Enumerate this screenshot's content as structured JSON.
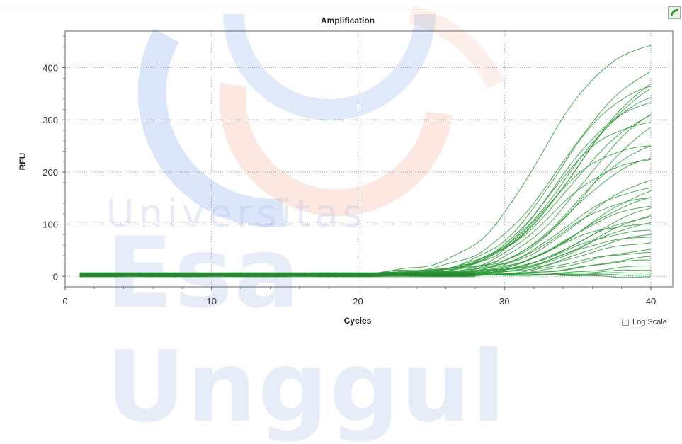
{
  "chart_data": {
    "type": "line",
    "title": "Amplification",
    "xlabel": "Cycles",
    "ylabel": "RFU",
    "xlim": [
      0,
      41.5
    ],
    "ylim": [
      -20,
      470
    ],
    "x_ticks": [
      0,
      10,
      20,
      30,
      40
    ],
    "y_ticks": [
      0,
      100,
      200,
      300,
      400
    ],
    "grid": true,
    "line_color": "#2e9b3a",
    "x_cycles": [
      1,
      40
    ],
    "series": [
      {
        "plateau": 460,
        "midpoint": 32.5,
        "slope": 0.42
      },
      {
        "plateau": 430,
        "midpoint": 34.0,
        "slope": 0.38
      },
      {
        "plateau": 415,
        "midpoint": 35.0,
        "slope": 0.4
      },
      {
        "plateau": 400,
        "midpoint": 34.8,
        "slope": 0.4
      },
      {
        "plateau": 380,
        "midpoint": 33.5,
        "slope": 0.45
      },
      {
        "plateau": 370,
        "midpoint": 34.2,
        "slope": 0.42
      },
      {
        "plateau": 360,
        "midpoint": 35.5,
        "slope": 0.4
      },
      {
        "plateau": 350,
        "midpoint": 33.6,
        "slope": 0.45
      },
      {
        "plateau": 340,
        "midpoint": 34.5,
        "slope": 0.4
      },
      {
        "plateau": 330,
        "midpoint": 35.8,
        "slope": 0.42
      },
      {
        "plateau": 300,
        "midpoint": 33.0,
        "slope": 0.5
      },
      {
        "plateau": 270,
        "midpoint": 34.8,
        "slope": 0.45
      },
      {
        "plateau": 255,
        "midpoint": 32.8,
        "slope": 0.5
      },
      {
        "plateau": 245,
        "midpoint": 34.6,
        "slope": 0.45
      },
      {
        "plateau": 230,
        "midpoint": 33.2,
        "slope": 0.48
      },
      {
        "plateau": 200,
        "midpoint": 35.0,
        "slope": 0.45
      },
      {
        "plateau": 185,
        "midpoint": 35.6,
        "slope": 0.42
      },
      {
        "plateau": 175,
        "midpoint": 34.0,
        "slope": 0.48
      },
      {
        "plateau": 165,
        "midpoint": 35.2,
        "slope": 0.45
      },
      {
        "plateau": 155,
        "midpoint": 33.8,
        "slope": 0.5
      },
      {
        "plateau": 148,
        "midpoint": 35.8,
        "slope": 0.45
      },
      {
        "plateau": 140,
        "midpoint": 34.4,
        "slope": 0.5
      },
      {
        "plateau": 132,
        "midpoint": 36.0,
        "slope": 0.45
      },
      {
        "plateau": 120,
        "midpoint": 34.9,
        "slope": 0.48
      },
      {
        "plateau": 110,
        "midpoint": 35.5,
        "slope": 0.5
      },
      {
        "plateau": 100,
        "midpoint": 33.3,
        "slope": 0.55
      },
      {
        "plateau": 90,
        "midpoint": 34.1,
        "slope": 0.52
      },
      {
        "plateau": 85,
        "midpoint": 35.3,
        "slope": 0.5
      },
      {
        "plateau": 75,
        "midpoint": 33.9,
        "slope": 0.55
      },
      {
        "plateau": 65,
        "midpoint": 34.7,
        "slope": 0.52
      },
      {
        "plateau": 55,
        "midpoint": 35.9,
        "slope": 0.5
      },
      {
        "plateau": 45,
        "midpoint": 34.5,
        "slope": 0.55
      },
      {
        "plateau": 40,
        "midpoint": 36.4,
        "slope": 0.55
      },
      {
        "plateau": 30,
        "midpoint": 35.2,
        "slope": 0.6
      },
      {
        "plateau": 20,
        "midpoint": 36.6,
        "slope": 0.55
      },
      {
        "plateau": 10,
        "midpoint": 36.0,
        "slope": 0.6
      },
      {
        "plateau": 5,
        "midpoint": 37.0,
        "slope": 0.6
      },
      {
        "plateau": 0,
        "midpoint": 36.0,
        "slope": 0.5
      },
      {
        "plateau": -5,
        "midpoint": 36.0,
        "slope": 0.5
      }
    ]
  },
  "watermark": {
    "line1": "Universitas",
    "line2": "Esa Unggul"
  },
  "controls": {
    "log_scale_label": "Log Scale"
  }
}
